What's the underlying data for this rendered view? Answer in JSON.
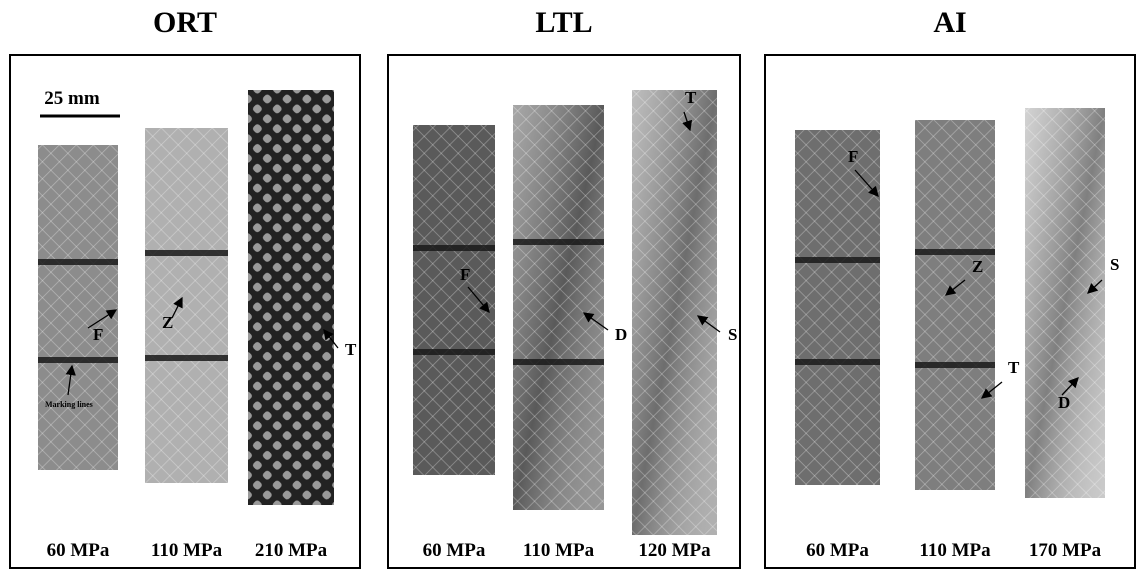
{
  "panels": [
    {
      "title": "ORT",
      "scale_bar": "25 mm",
      "specimens": [
        {
          "label": "60 MPa",
          "annotations": [
            "F",
            "Marking lines"
          ]
        },
        {
          "label": "110 MPa",
          "annotations": [
            "Z"
          ]
        },
        {
          "label": "210 MPa",
          "annotations": [
            "T"
          ]
        }
      ]
    },
    {
      "title": "LTL",
      "specimens": [
        {
          "label": "60 MPa",
          "annotations": [
            "F"
          ]
        },
        {
          "label": "110 MPa",
          "annotations": [
            "D"
          ]
        },
        {
          "label": "120 MPa",
          "annotations": [
            "T",
            "S"
          ]
        }
      ]
    },
    {
      "title": "AI",
      "specimens": [
        {
          "label": "60 MPa",
          "annotations": [
            "F"
          ]
        },
        {
          "label": "110 MPa",
          "annotations": [
            "Z",
            "T"
          ]
        },
        {
          "label": "170 MPa",
          "annotations": [
            "S",
            "D"
          ]
        }
      ]
    }
  ]
}
